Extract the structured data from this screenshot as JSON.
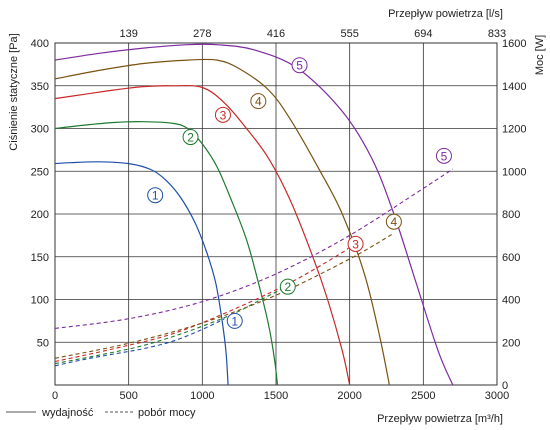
{
  "chart_data": {
    "type": "line",
    "xlabel": "Przepływ powietrza [m³/h]",
    "x2label": "Przepływ powietrza [l/s]",
    "ylabel": "Ciśnienie statyczne [Pa]",
    "y2label": "Moc [W]",
    "xlim": [
      0,
      3000
    ],
    "ylim": [
      0,
      400
    ],
    "y2lim": [
      0,
      1600
    ],
    "grid": true,
    "x_ticks": [
      "0",
      "500",
      "1000",
      "1500",
      "2000",
      "2500",
      "3000"
    ],
    "y_ticks": [
      "50",
      "100",
      "150",
      "200",
      "250",
      "300",
      "350",
      "400"
    ],
    "y2_ticks": [
      "0",
      "200",
      "400",
      "600",
      "800",
      "1000",
      "1200",
      "1400",
      "1600"
    ],
    "x2_ticks": [
      {
        "x": 500,
        "label": "139"
      },
      {
        "x": 1000,
        "label": "278"
      },
      {
        "x": 1500,
        "label": "416"
      },
      {
        "x": 2000,
        "label": "555"
      },
      {
        "x": 2500,
        "label": "694"
      },
      {
        "x": 3000,
        "label": "833"
      }
    ],
    "legend": {
      "solid_label": "wydajność",
      "dashed_label": "pobór mocy"
    },
    "series": [
      {
        "name": "1",
        "color": "#1f4fa8",
        "pressure": [
          [
            0,
            259
          ],
          [
            100,
            260
          ],
          [
            300,
            261
          ],
          [
            500,
            259
          ],
          [
            650,
            252
          ],
          [
            750,
            240
          ],
          [
            850,
            220
          ],
          [
            950,
            190
          ],
          [
            1030,
            155
          ],
          [
            1090,
            120
          ],
          [
            1130,
            80
          ],
          [
            1160,
            40
          ],
          [
            1175,
            0
          ]
        ],
        "power": [
          [
            0,
            90
          ],
          [
            200,
            120
          ],
          [
            400,
            145
          ],
          [
            600,
            170
          ],
          [
            800,
            205
          ],
          [
            1000,
            260
          ],
          [
            1150,
            310
          ]
        ],
        "pressure_label": {
          "x": 680,
          "y": 222,
          "text": "1"
        },
        "power_label": {
          "x": 1220,
          "y": 75,
          "text": "1"
        }
      },
      {
        "name": "2",
        "color": "#1e7a2e",
        "pressure": [
          [
            0,
            300
          ],
          [
            200,
            304
          ],
          [
            400,
            307
          ],
          [
            600,
            308
          ],
          [
            800,
            306
          ],
          [
            900,
            300
          ],
          [
            1000,
            282
          ],
          [
            1100,
            255
          ],
          [
            1200,
            215
          ],
          [
            1300,
            170
          ],
          [
            1380,
            120
          ],
          [
            1450,
            70
          ],
          [
            1490,
            30
          ],
          [
            1510,
            0
          ]
        ],
        "power": [
          [
            0,
            100
          ],
          [
            300,
            140
          ],
          [
            600,
            185
          ],
          [
            900,
            250
          ],
          [
            1200,
            330
          ],
          [
            1400,
            400
          ],
          [
            1600,
            470
          ]
        ],
        "pressure_label": {
          "x": 920,
          "y": 290,
          "text": "2"
        },
        "power_label": {
          "x": 1580,
          "y": 115,
          "text": "2"
        }
      },
      {
        "name": "3",
        "color": "#c82828",
        "pressure": [
          [
            0,
            335
          ],
          [
            200,
            340
          ],
          [
            400,
            345
          ],
          [
            600,
            349
          ],
          [
            800,
            350
          ],
          [
            1000,
            348
          ],
          [
            1150,
            330
          ],
          [
            1300,
            300
          ],
          [
            1450,
            265
          ],
          [
            1600,
            215
          ],
          [
            1750,
            150
          ],
          [
            1850,
            100
          ],
          [
            1950,
            40
          ],
          [
            2000,
            0
          ]
        ],
        "power": [
          [
            0,
            110
          ],
          [
            400,
            170
          ],
          [
            800,
            240
          ],
          [
            1200,
            350
          ],
          [
            1600,
            480
          ],
          [
            1950,
            620
          ],
          [
            2000,
            650
          ]
        ],
        "pressure_label": {
          "x": 1140,
          "y": 316,
          "text": "3"
        },
        "power_label": {
          "x": 2040,
          "y": 165,
          "text": "3"
        }
      },
      {
        "name": "4",
        "color": "#7a5210",
        "pressure": [
          [
            0,
            358
          ],
          [
            300,
            368
          ],
          [
            600,
            376
          ],
          [
            900,
            380
          ],
          [
            1100,
            380
          ],
          [
            1250,
            370
          ],
          [
            1450,
            345
          ],
          [
            1600,
            310
          ],
          [
            1800,
            250
          ],
          [
            1950,
            200
          ],
          [
            2100,
            130
          ],
          [
            2200,
            60
          ],
          [
            2270,
            0
          ]
        ],
        "power": [
          [
            0,
            125
          ],
          [
            500,
            195
          ],
          [
            1000,
            290
          ],
          [
            1500,
            420
          ],
          [
            2000,
            590
          ],
          [
            2300,
            710
          ]
        ],
        "pressure_label": {
          "x": 1380,
          "y": 332,
          "text": "4"
        },
        "power_label": {
          "x": 2300,
          "y": 191,
          "text": "4"
        }
      },
      {
        "name": "5",
        "color": "#7d2aa0",
        "pressure": [
          [
            0,
            380
          ],
          [
            300,
            388
          ],
          [
            600,
            394
          ],
          [
            900,
            398
          ],
          [
            1100,
            398
          ],
          [
            1350,
            392
          ],
          [
            1650,
            370
          ],
          [
            1950,
            320
          ],
          [
            2150,
            265
          ],
          [
            2300,
            200
          ],
          [
            2450,
            120
          ],
          [
            2600,
            40
          ],
          [
            2700,
            0
          ]
        ],
        "power": [
          [
            0,
            265
          ],
          [
            500,
            310
          ],
          [
            1000,
            390
          ],
          [
            1500,
            520
          ],
          [
            2000,
            700
          ],
          [
            2500,
            920
          ],
          [
            2700,
            1010
          ]
        ],
        "pressure_label": {
          "x": 1660,
          "y": 374,
          "text": "5"
        },
        "power_label": {
          "x": 2640,
          "y": 268,
          "text": "5"
        }
      }
    ]
  }
}
